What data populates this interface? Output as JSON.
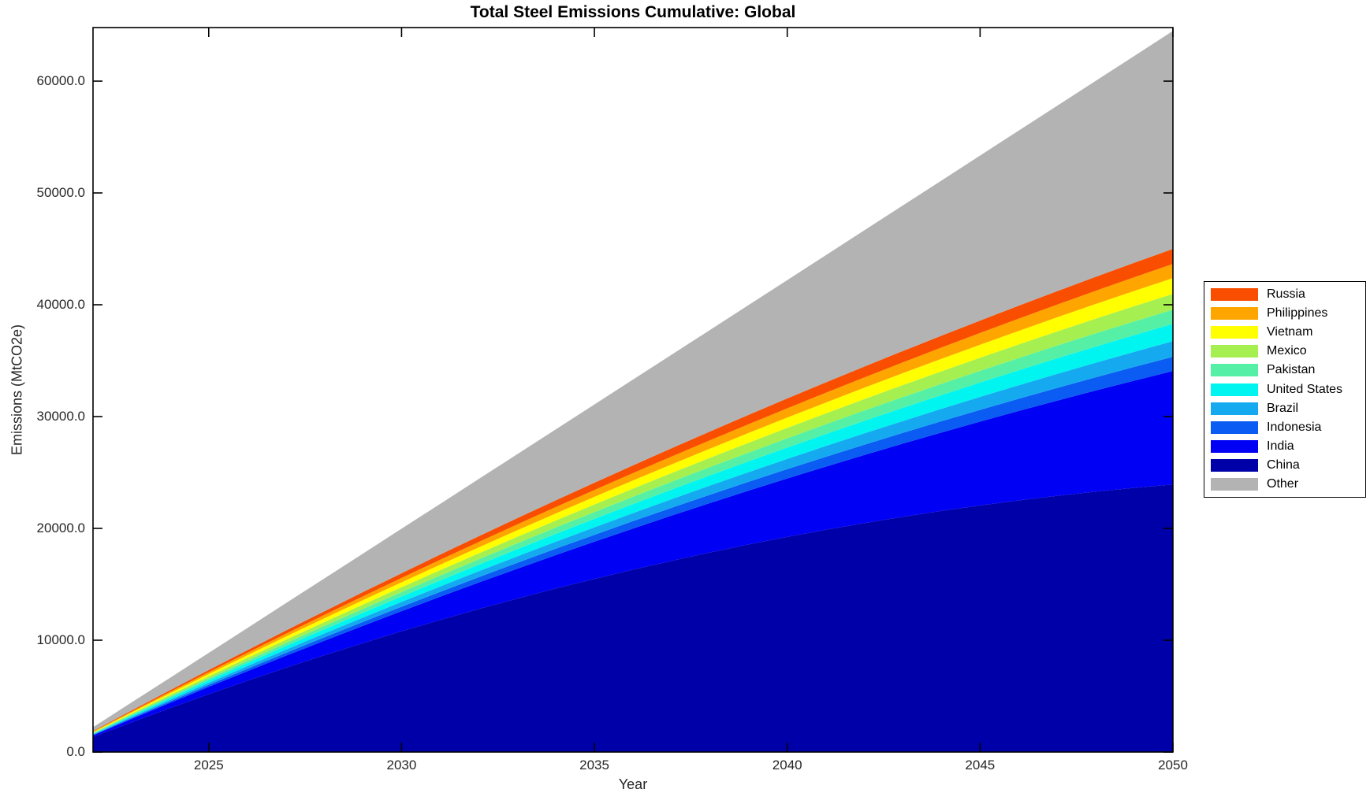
{
  "figure": {
    "background": "#ffffff",
    "axis_color": "#000000",
    "text_color": "#262626"
  },
  "chart_data": {
    "type": "area",
    "stacked": true,
    "title": "Total Steel Emissions Cumulative: Global",
    "xlabel": "Year",
    "ylabel": "Emissions (MtCO2e)",
    "xlim": [
      2022,
      2050
    ],
    "ylim": [
      0,
      64790
    ],
    "grid": false,
    "legend_position": "outside-right",
    "x_ticks": [
      2025,
      2030,
      2035,
      2040,
      2045,
      2050
    ],
    "x_tick_labels": [
      "2025",
      "2030",
      "2035",
      "2040",
      "2045",
      "2050"
    ],
    "y_ticks": [
      0,
      10000,
      20000,
      30000,
      40000,
      50000,
      60000
    ],
    "y_tick_labels": [
      "0.0",
      "10000.0",
      "20000.0",
      "30000.0",
      "40000.0",
      "50000.0",
      "60000.0"
    ],
    "legend_order_top_to_bottom": [
      "Russia",
      "Philippines",
      "Vietnam",
      "Mexico",
      "Pakistan",
      "United States",
      "Brazil",
      "Indonesia",
      "India",
      "China",
      "Other"
    ],
    "x": [
      2022,
      2023,
      2024,
      2025,
      2026,
      2027,
      2028,
      2029,
      2030,
      2031,
      2032,
      2033,
      2034,
      2035,
      2036,
      2037,
      2038,
      2039,
      2040,
      2041,
      2042,
      2043,
      2044,
      2045,
      2046,
      2047,
      2048,
      2049,
      2050
    ],
    "series": [
      {
        "name": "China",
        "color": "#0000A8",
        "values": [
          1350,
          2663,
          3938,
          5175,
          6375,
          7538,
          8663,
          9750,
          10800,
          11813,
          12788,
          13725,
          14625,
          15488,
          16313,
          17100,
          17850,
          18563,
          19238,
          19875,
          20475,
          21038,
          21563,
          22050,
          22500,
          22913,
          23288,
          23625,
          23925
        ]
      },
      {
        "name": "India",
        "color": "#0000F5",
        "values": [
          140,
          295,
          465,
          650,
          850,
          1065,
          1295,
          1540,
          1800,
          2075,
          2365,
          2670,
          2990,
          3325,
          3675,
          4040,
          4420,
          4815,
          5225,
          5650,
          6090,
          6545,
          7015,
          7500,
          8000,
          8515,
          9045,
          9590,
          10150
        ]
      },
      {
        "name": "Indonesia",
        "color": "#0A5CF2",
        "values": [
          44,
          88,
          131,
          175,
          219,
          263,
          307,
          350,
          394,
          438,
          482,
          526,
          569,
          613,
          657,
          701,
          745,
          788,
          832,
          876,
          920,
          964,
          1007,
          1051,
          1095,
          1139,
          1183,
          1226,
          1270
        ]
      },
      {
        "name": "Brazil",
        "color": "#15AAF0",
        "values": [
          48,
          97,
          145,
          193,
          241,
          290,
          338,
          386,
          434,
          483,
          531,
          579,
          628,
          676,
          724,
          772,
          821,
          869,
          917,
          966,
          1014,
          1062,
          1110,
          1159,
          1207,
          1255,
          1303,
          1352,
          1400
        ]
      },
      {
        "name": "United States",
        "color": "#00F5F0",
        "values": [
          53,
          107,
          160,
          214,
          267,
          321,
          374,
          428,
          481,
          534,
          588,
          641,
          695,
          748,
          802,
          855,
          909,
          962,
          1016,
          1069,
          1122,
          1176,
          1229,
          1283,
          1336,
          1390,
          1443,
          1497,
          1550
        ]
      },
      {
        "name": "Pakistan",
        "color": "#55F0A5",
        "values": [
          44,
          88,
          131,
          175,
          219,
          263,
          307,
          350,
          394,
          438,
          482,
          526,
          569,
          613,
          657,
          701,
          745,
          788,
          832,
          876,
          920,
          964,
          1007,
          1051,
          1095,
          1139,
          1183,
          1226,
          1270
        ]
      },
      {
        "name": "Mexico",
        "color": "#A5F050",
        "values": [
          49,
          97,
          146,
          194,
          243,
          292,
          340,
          389,
          438,
          486,
          535,
          583,
          632,
          681,
          729,
          778,
          826,
          875,
          924,
          972,
          1021,
          1070,
          1118,
          1167,
          1215,
          1264,
          1313,
          1361,
          1410
        ]
      },
      {
        "name": "Vietnam",
        "color": "#FFFF00",
        "values": [
          49,
          97,
          146,
          194,
          243,
          292,
          340,
          389,
          438,
          486,
          535,
          583,
          632,
          681,
          729,
          778,
          826,
          875,
          924,
          972,
          1021,
          1070,
          1118,
          1167,
          1215,
          1264,
          1313,
          1361,
          1410
        ]
      },
      {
        "name": "Philippines",
        "color": "#FFA500",
        "values": [
          44,
          88,
          131,
          175,
          219,
          263,
          307,
          350,
          394,
          438,
          482,
          526,
          569,
          613,
          657,
          701,
          745,
          788,
          832,
          876,
          920,
          964,
          1007,
          1051,
          1095,
          1139,
          1183,
          1226,
          1270
        ]
      },
      {
        "name": "Russia",
        "color": "#F94D00",
        "values": [
          46,
          92,
          139,
          185,
          231,
          277,
          323,
          370,
          416,
          462,
          508,
          554,
          601,
          647,
          693,
          739,
          785,
          832,
          878,
          924,
          970,
          1016,
          1063,
          1109,
          1155,
          1201,
          1247,
          1294,
          1340
        ]
      },
      {
        "name": "Other",
        "color": "#B3B3B3",
        "values": [
          350,
          723,
          1119,
          1538,
          1981,
          2446,
          2935,
          3446,
          3981,
          4538,
          5119,
          5722,
          6349,
          6998,
          7671,
          8366,
          9084,
          9826,
          10590,
          11377,
          12187,
          13020,
          13876,
          14755,
          15656,
          16581,
          17528,
          18499,
          19492
        ]
      }
    ]
  }
}
